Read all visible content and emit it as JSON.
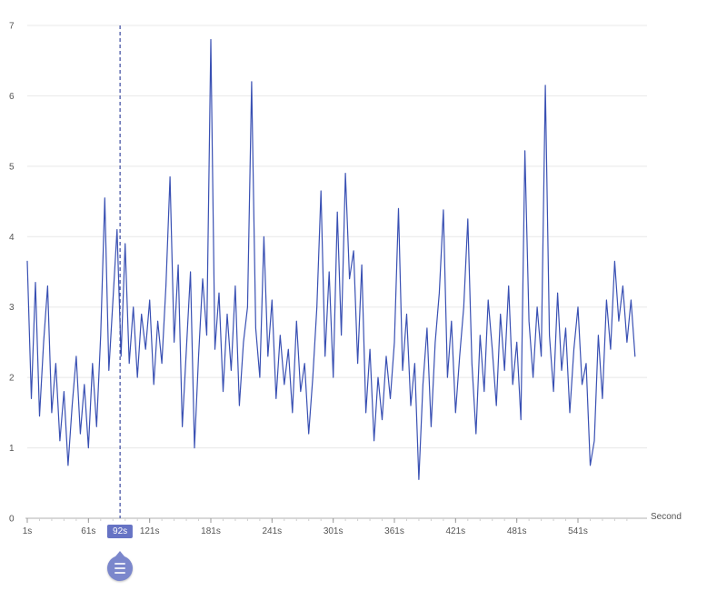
{
  "chart_data": {
    "type": "line",
    "title": "",
    "xlabel": "Second",
    "ylabel": "",
    "ylim": [
      0,
      7
    ],
    "xlim": [
      1,
      600
    ],
    "grid": true,
    "legend": "none",
    "line_color": "#3950b3",
    "selected_x": 92,
    "selected_label": "92s",
    "y_ticks": [
      0,
      1,
      2,
      3,
      4,
      5,
      6,
      7
    ],
    "x_ticks": [
      {
        "t": 1,
        "label": "1s"
      },
      {
        "t": 61,
        "label": "61s"
      },
      {
        "t": 92,
        "label": "92s",
        "selected": true
      },
      {
        "t": 121,
        "label": "121s"
      },
      {
        "t": 181,
        "label": "181s"
      },
      {
        "t": 241,
        "label": "241s"
      },
      {
        "t": 301,
        "label": "301s"
      },
      {
        "t": 361,
        "label": "361s"
      },
      {
        "t": 421,
        "label": "421s"
      },
      {
        "t": 481,
        "label": "481s"
      },
      {
        "t": 541,
        "label": "541s"
      }
    ],
    "x": [
      1,
      5,
      9,
      13,
      17,
      21,
      25,
      29,
      33,
      37,
      41,
      45,
      49,
      53,
      57,
      61,
      65,
      69,
      73,
      77,
      81,
      85,
      89,
      93,
      97,
      101,
      105,
      109,
      113,
      117,
      121,
      125,
      129,
      133,
      137,
      141,
      145,
      149,
      153,
      157,
      161,
      165,
      169,
      173,
      177,
      181,
      185,
      189,
      193,
      197,
      201,
      205,
      209,
      213,
      217,
      221,
      225,
      229,
      233,
      237,
      241,
      245,
      249,
      253,
      257,
      261,
      265,
      269,
      273,
      277,
      281,
      285,
      289,
      293,
      297,
      301,
      305,
      309,
      313,
      317,
      321,
      325,
      329,
      333,
      337,
      341,
      345,
      349,
      353,
      357,
      361,
      365,
      369,
      373,
      377,
      381,
      385,
      389,
      393,
      397,
      401,
      405,
      409,
      413,
      417,
      421,
      425,
      429,
      433,
      437,
      441,
      445,
      449,
      453,
      457,
      461,
      465,
      469,
      473,
      477,
      481,
      485,
      489,
      493,
      497,
      501,
      505,
      509,
      513,
      517,
      521,
      525,
      529,
      533,
      537,
      541,
      545,
      549,
      553,
      557,
      561,
      565,
      569,
      573,
      577,
      581,
      585,
      589,
      593,
      597
    ],
    "y": [
      3.65,
      1.7,
      3.35,
      1.45,
      2.5,
      3.3,
      1.5,
      2.2,
      1.1,
      1.8,
      0.75,
      1.6,
      2.3,
      1.2,
      1.9,
      1.0,
      2.2,
      1.3,
      2.6,
      4.55,
      2.1,
      3.1,
      4.1,
      2.3,
      3.9,
      2.2,
      3.0,
      2.0,
      2.9,
      2.4,
      3.1,
      1.9,
      2.8,
      2.2,
      3.3,
      4.85,
      2.5,
      3.6,
      1.3,
      2.4,
      3.5,
      1.0,
      2.3,
      3.4,
      2.6,
      6.8,
      2.4,
      3.2,
      1.8,
      2.9,
      2.1,
      3.3,
      1.6,
      2.5,
      3.0,
      6.2,
      2.7,
      2.0,
      4.0,
      2.3,
      3.1,
      1.7,
      2.6,
      1.9,
      2.4,
      1.5,
      2.8,
      1.8,
      2.2,
      1.2,
      2.0,
      3.0,
      4.65,
      2.3,
      3.5,
      2.0,
      4.35,
      2.6,
      4.9,
      3.4,
      3.8,
      2.2,
      3.6,
      1.5,
      2.4,
      1.1,
      2.0,
      1.4,
      2.3,
      1.7,
      2.5,
      4.4,
      2.1,
      2.9,
      1.6,
      2.2,
      0.55,
      1.9,
      2.7,
      1.3,
      2.5,
      3.2,
      4.38,
      2.0,
      2.8,
      1.5,
      2.3,
      3.0,
      4.25,
      2.2,
      1.2,
      2.6,
      1.8,
      3.1,
      2.4,
      1.6,
      2.9,
      2.1,
      3.3,
      1.9,
      2.5,
      1.4,
      5.22,
      2.8,
      2.0,
      3.0,
      2.3,
      6.15,
      2.6,
      1.8,
      3.2,
      2.1,
      2.7,
      1.5,
      2.4,
      3.0,
      1.9,
      2.2,
      0.75,
      1.1,
      2.6,
      1.7,
      3.1,
      2.4,
      3.65,
      2.8,
      3.3,
      2.5,
      3.1,
      2.3
    ]
  },
  "colors": {
    "line": "#3950b3",
    "grid": "#e8e8e8",
    "axis": "#b0b0b0",
    "tick_text": "#555555",
    "dashed_marker": "#3b4a9f",
    "badge_bg": "#6673c4",
    "badge_text": "#ffffff",
    "handle_bg": "#7b87cc"
  }
}
